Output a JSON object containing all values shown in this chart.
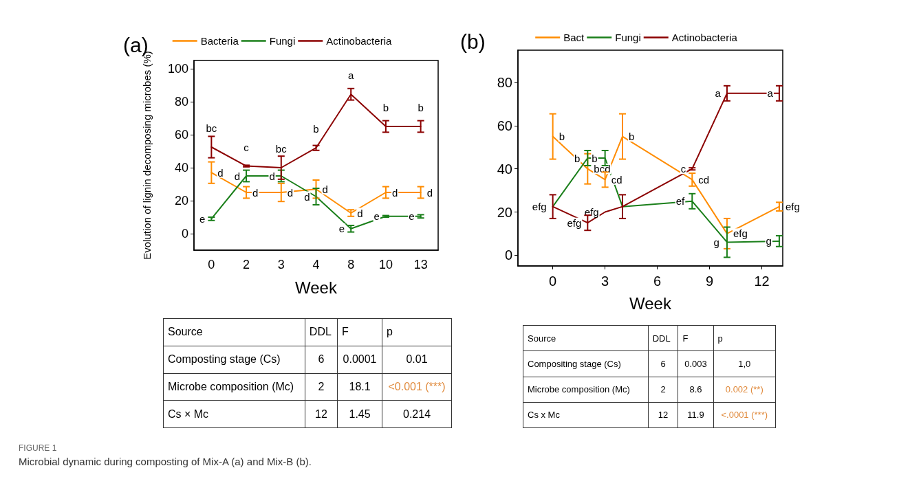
{
  "chart_data": [
    {
      "type": "line",
      "title": "(a)",
      "xlabel": "Week",
      "ylabel": "Evolution of lignin decomposing microbes (%)",
      "categories": [
        "0",
        "2",
        "3",
        "4",
        "8",
        "10",
        "13"
      ],
      "series": [
        {
          "name": "Bacteria",
          "color": "#ff8c00",
          "values": [
            37,
            25,
            25,
            27,
            12.5,
            25,
            25
          ],
          "errors": [
            6.5,
            3.5,
            5.5,
            5.5,
            2,
            3.5,
            3.5
          ],
          "value_labels": [
            "d",
            "d",
            "d",
            "d",
            "d",
            "d",
            "d"
          ]
        },
        {
          "name": "Fungi",
          "color": "#1a7f1a",
          "values": [
            9,
            35,
            35,
            22.5,
            3,
            10.5,
            10.5
          ],
          "errors": [
            1,
            3.5,
            3.5,
            5,
            2,
            0.5,
            1
          ],
          "value_labels": [
            "e",
            "d",
            "d",
            "d",
            "e",
            "e",
            "e"
          ]
        },
        {
          "name": "Actinobacteria",
          "color": "#8b0000",
          "values": [
            52.5,
            41,
            40,
            52,
            84.5,
            65,
            65
          ],
          "errors": [
            6.5,
            0.5,
            7,
            1.5,
            3.5,
            3.5,
            3.5
          ],
          "value_labels": [
            "bc",
            "c",
            "bc",
            "b",
            "a",
            "b",
            "b"
          ]
        }
      ],
      "ylim": [
        -10,
        105
      ],
      "yticks": [
        0,
        20,
        40,
        60,
        80,
        100
      ],
      "grid": false,
      "legend": "top",
      "marker": "none",
      "line_style": "solid"
    },
    {
      "type": "line",
      "title": "(b)",
      "xlabel": "Week",
      "x": [
        0,
        2,
        3,
        4,
        8,
        10,
        13
      ],
      "series": [
        {
          "name": "Bact",
          "color": "#ff8c00",
          "values": [
            55,
            40,
            35,
            55,
            35,
            10,
            22.5
          ],
          "errors": [
            10.5,
            7,
            3.5,
            10.5,
            3,
            7,
            2
          ],
          "value_labels": [
            "b",
            "bcd",
            "cd",
            "b",
            "cd",
            "efg",
            "efg"
          ]
        },
        {
          "name": "Fungi",
          "color": "#1a7f1a",
          "values": [
            22.5,
            45,
            45,
            22.5,
            25,
            6,
            6.5
          ],
          "errors": [
            null,
            3.5,
            3.5,
            null,
            3.5,
            7,
            2.5
          ],
          "value_labels": [
            null,
            "b",
            "b",
            null,
            "ef",
            "g",
            "g"
          ]
        },
        {
          "name": "Actinobacteria",
          "color": "#8b0000",
          "values": [
            22.5,
            15,
            20,
            22.5,
            40,
            75,
            75
          ],
          "errors": [
            5.5,
            3.5,
            null,
            5.5,
            0.5,
            3.5,
            3.5
          ],
          "value_labels": [
            "efg",
            "efg",
            "efg",
            null,
            "c",
            "a",
            "a"
          ]
        }
      ],
      "xlim": [
        -2,
        13.2
      ],
      "xticks": [
        0,
        3,
        6,
        9,
        12
      ],
      "ylim": [
        -5,
        95
      ],
      "yticks": [
        0,
        20,
        40,
        60,
        80
      ],
      "grid": false,
      "legend": "top",
      "marker": "none",
      "line_style": "solid"
    },
    {
      "type": "other",
      "categories": [
        "Source",
        "DDL",
        "F",
        "p"
      ],
      "annotations": [
        "Composting stage (Cs)",
        "6",
        "0.0001",
        "0.01",
        "Microbe composition (Mc)",
        "2",
        "18.1",
        "<0.001 (***)",
        "Cs × Mc",
        "12",
        "1.45",
        "0.214"
      ],
      "colors": [
        "#000000",
        "#000000",
        "#000000",
        "#000000",
        "#000000",
        "#000000",
        "#000000",
        "#e08a3c",
        "#000000",
        "#000000",
        "#000000",
        "#000000"
      ]
    },
    {
      "type": "other",
      "categories": [
        "Source",
        "DDL",
        "F",
        "p"
      ],
      "annotations": [
        "Compositing stage (Cs)",
        "6",
        "0.003",
        "1,0",
        "Microbe composition (Mc)",
        "2",
        "8.6",
        "0.002 (**)",
        "Cs x Mc",
        "12",
        "11.9",
        "<.0001 (***)"
      ],
      "colors": [
        "#000000",
        "#000000",
        "#000000",
        "#000000",
        "#000000",
        "#000000",
        "#000000",
        "#e08a3c",
        "#000000",
        "#000000",
        "#000000",
        "#e08a3c"
      ]
    },
    {
      "type": "other",
      "title": "FIGURE 1",
      "annotations": [
        "Microbial dynamic during composting of Mix-A (a) and Mix-B (b)."
      ]
    }
  ]
}
